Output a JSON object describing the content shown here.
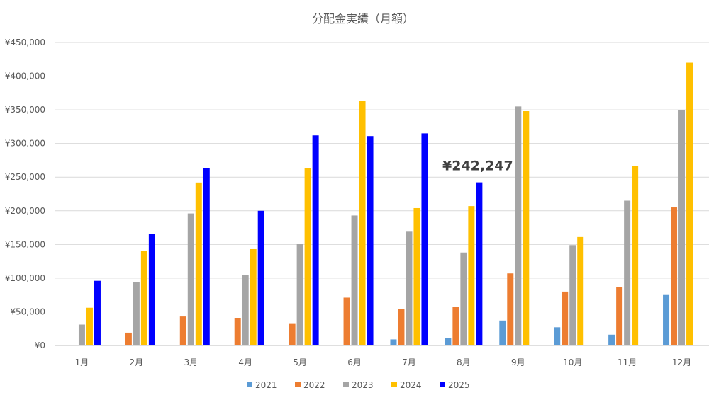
{
  "chart_data": {
    "type": "bar",
    "title": "分配金実績（月額）",
    "categories": [
      "1月",
      "2月",
      "3月",
      "4月",
      "5月",
      "6月",
      "7月",
      "8月",
      "9月",
      "10月",
      "11月",
      "12月"
    ],
    "ylim": [
      0,
      450000
    ],
    "yticks": [
      "¥0",
      "¥50,000",
      "¥100,000",
      "¥150,000",
      "¥200,000",
      "¥250,000",
      "¥300,000",
      "¥350,000",
      "¥400,000",
      "¥450,000"
    ],
    "grid": true,
    "legend_position": "bottom",
    "series": [
      {
        "name": "2021",
        "color": "#5B9BD5",
        "values": [
          0,
          0,
          0,
          0,
          0,
          0,
          9000,
          11000,
          37000,
          27000,
          16000,
          76000
        ]
      },
      {
        "name": "2022",
        "color": "#ED7D31",
        "values": [
          1000,
          19000,
          43000,
          41000,
          33000,
          71000,
          54000,
          57000,
          107000,
          80000,
          87000,
          205000
        ]
      },
      {
        "name": "2023",
        "color": "#A5A5A5",
        "values": [
          31000,
          94000,
          196000,
          105000,
          151000,
          193000,
          170000,
          138000,
          355000,
          149000,
          215000,
          350000
        ]
      },
      {
        "name": "2024",
        "color": "#FFC000",
        "values": [
          56000,
          140000,
          242000,
          143000,
          263000,
          363000,
          204000,
          207000,
          348000,
          161000,
          267000,
          420000
        ]
      },
      {
        "name": "2025",
        "color": "#0000FF",
        "values": [
          96000,
          166000,
          263000,
          200000,
          312000,
          311000,
          315000,
          242247,
          null,
          null,
          null,
          null
        ]
      }
    ],
    "annotation": {
      "text": "¥242,247",
      "series": "2025",
      "category": "8月"
    }
  }
}
